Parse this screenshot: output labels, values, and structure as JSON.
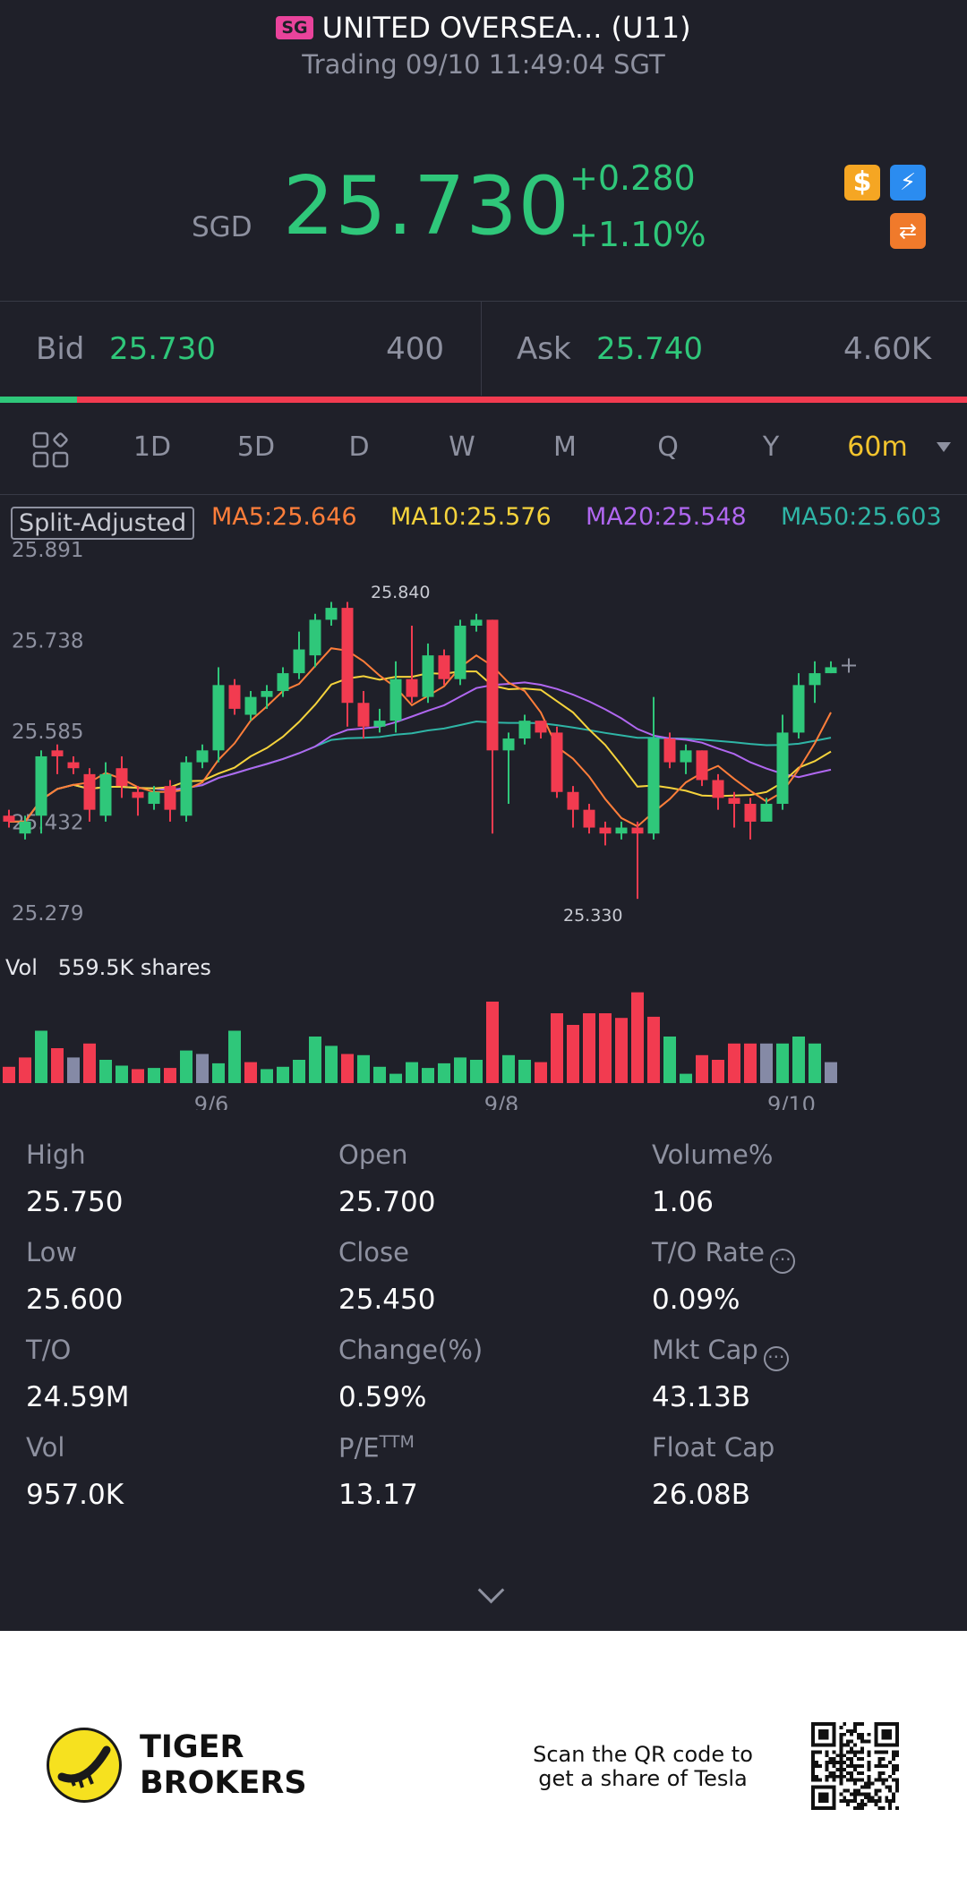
{
  "header": {
    "market_badge": "SG",
    "title": "UNITED OVERSEA... (U11)",
    "status": "Trading 09/10 11:49:04 SGT"
  },
  "quote": {
    "currency": "SGD",
    "price": "25.730",
    "change": "+0.280",
    "change_pct": "+1.10%",
    "color_up": "#2fc77a",
    "color_down": "#f23b50"
  },
  "badges": [
    "dollar-icon",
    "lightning-icon",
    "swap-icon"
  ],
  "orderbook": {
    "bid_label": "Bid",
    "bid_price": "25.730",
    "bid_qty": "400",
    "ask_label": "Ask",
    "ask_price": "25.740",
    "ask_qty": "4.60K",
    "bid_fraction": 0.08
  },
  "tabs": {
    "items": [
      "1D",
      "5D",
      "D",
      "W",
      "M",
      "Q",
      "Y",
      "60m"
    ],
    "selected": "60m"
  },
  "indicators": {
    "split_adjusted": "Split-Adjusted",
    "ma5": "MA5:25.646",
    "ma10": "MA10:25.576",
    "ma20": "MA20:25.548",
    "ma50": "MA50:25.603",
    "colors": {
      "ma5": "#ff7e3a",
      "ma10": "#f5d33c",
      "ma20": "#b067f0",
      "ma50": "#2fb5a6"
    }
  },
  "chart_data": {
    "type": "candlestick",
    "y_ticks": [
      "25.891",
      "25.738",
      "25.585",
      "25.432",
      "25.279"
    ],
    "ylim": [
      25.279,
      25.891
    ],
    "x_ticks": [
      {
        "label": "9/6",
        "index": 13
      },
      {
        "label": "9/8",
        "index": 31
      },
      {
        "label": "9/10",
        "index": 49
      }
    ],
    "high_marker": {
      "label": "25.840",
      "index": 22
    },
    "low_marker": {
      "label": "25.330",
      "index": 40
    },
    "volume_label": "Vol",
    "volume_value": "559.5K shares",
    "candles": [
      [
        25.47,
        25.46,
        25.48,
        25.45
      ],
      [
        25.44,
        25.46,
        25.47,
        25.43
      ],
      [
        25.47,
        25.57,
        25.58,
        25.44
      ],
      [
        25.58,
        25.57,
        25.59,
        25.54
      ],
      [
        25.56,
        25.55,
        25.57,
        25.54
      ],
      [
        25.54,
        25.48,
        25.55,
        25.46
      ],
      [
        25.47,
        25.54,
        25.56,
        25.46
      ],
      [
        25.55,
        25.52,
        25.57,
        25.5
      ],
      [
        25.51,
        25.5,
        25.52,
        25.47
      ],
      [
        25.49,
        25.51,
        25.52,
        25.48
      ],
      [
        25.52,
        25.48,
        25.53,
        25.46
      ],
      [
        25.47,
        25.56,
        25.57,
        25.46
      ],
      [
        25.56,
        25.58,
        25.59,
        25.55
      ],
      [
        25.58,
        25.69,
        25.72,
        25.56
      ],
      [
        25.69,
        25.65,
        25.7,
        25.64
      ],
      [
        25.64,
        25.67,
        25.68,
        25.63
      ],
      [
        25.67,
        25.68,
        25.69,
        25.65
      ],
      [
        25.68,
        25.71,
        25.72,
        25.67
      ],
      [
        25.71,
        25.75,
        25.78,
        25.7
      ],
      [
        25.74,
        25.8,
        25.81,
        25.72
      ],
      [
        25.8,
        25.82,
        25.83,
        25.79
      ],
      [
        25.82,
        25.66,
        25.83,
        25.62
      ],
      [
        25.66,
        25.62,
        25.68,
        25.6
      ],
      [
        25.62,
        25.63,
        25.65,
        25.61
      ],
      [
        25.63,
        25.7,
        25.73,
        25.61
      ],
      [
        25.7,
        25.67,
        25.79,
        25.66
      ],
      [
        25.67,
        25.74,
        25.76,
        25.66
      ],
      [
        25.74,
        25.7,
        25.75,
        25.69
      ],
      [
        25.7,
        25.79,
        25.8,
        25.69
      ],
      [
        25.79,
        25.8,
        25.81,
        25.78
      ],
      [
        25.8,
        25.58,
        25.8,
        25.44
      ],
      [
        25.58,
        25.6,
        25.61,
        25.49
      ],
      [
        25.6,
        25.63,
        25.64,
        25.59
      ],
      [
        25.63,
        25.61,
        25.62,
        25.6
      ],
      [
        25.61,
        25.51,
        25.62,
        25.5
      ],
      [
        25.51,
        25.48,
        25.52,
        25.45
      ],
      [
        25.48,
        25.45,
        25.49,
        25.44
      ],
      [
        25.45,
        25.44,
        25.46,
        25.42
      ],
      [
        25.44,
        25.45,
        25.46,
        25.43
      ],
      [
        25.45,
        25.44,
        25.46,
        25.33
      ],
      [
        25.44,
        25.6,
        25.67,
        25.43
      ],
      [
        25.6,
        25.56,
        25.61,
        25.55
      ],
      [
        25.56,
        25.58,
        25.59,
        25.54
      ],
      [
        25.58,
        25.53,
        25.58,
        25.52
      ],
      [
        25.53,
        25.5,
        25.54,
        25.48
      ],
      [
        25.5,
        25.49,
        25.51,
        25.45
      ],
      [
        25.49,
        25.46,
        25.5,
        25.43
      ],
      [
        25.46,
        25.49,
        25.5,
        25.46
      ],
      [
        25.49,
        25.61,
        25.64,
        25.48
      ],
      [
        25.61,
        25.69,
        25.71,
        25.6
      ],
      [
        25.69,
        25.71,
        25.73,
        25.66
      ],
      [
        25.71,
        25.72,
        25.73,
        25.71
      ]
    ],
    "volume": [
      [
        14,
        "d"
      ],
      [
        22,
        "d"
      ],
      [
        45,
        "u"
      ],
      [
        30,
        "d"
      ],
      [
        22,
        "n"
      ],
      [
        34,
        "d"
      ],
      [
        20,
        "u"
      ],
      [
        15,
        "u"
      ],
      [
        12,
        "d"
      ],
      [
        13,
        "u"
      ],
      [
        13,
        "d"
      ],
      [
        28,
        "u"
      ],
      [
        25,
        "n"
      ],
      [
        17,
        "u"
      ],
      [
        45,
        "u"
      ],
      [
        18,
        "d"
      ],
      [
        12,
        "u"
      ],
      [
        14,
        "u"
      ],
      [
        20,
        "u"
      ],
      [
        40,
        "u"
      ],
      [
        32,
        "u"
      ],
      [
        25,
        "d"
      ],
      [
        24,
        "u"
      ],
      [
        14,
        "u"
      ],
      [
        8,
        "u"
      ],
      [
        18,
        "u"
      ],
      [
        13,
        "u"
      ],
      [
        17,
        "u"
      ],
      [
        22,
        "u"
      ],
      [
        20,
        "u"
      ],
      [
        70,
        "d"
      ],
      [
        24,
        "u"
      ],
      [
        20,
        "u"
      ],
      [
        18,
        "d"
      ],
      [
        60,
        "d"
      ],
      [
        50,
        "d"
      ],
      [
        60,
        "d"
      ],
      [
        60,
        "d"
      ],
      [
        56,
        "d"
      ],
      [
        78,
        "d"
      ],
      [
        57,
        "d"
      ],
      [
        40,
        "u"
      ],
      [
        8,
        "u"
      ],
      [
        24,
        "d"
      ],
      [
        20,
        "d"
      ],
      [
        34,
        "d"
      ],
      [
        34,
        "d"
      ],
      [
        34,
        "n"
      ],
      [
        34,
        "u"
      ],
      [
        40,
        "u"
      ],
      [
        34,
        "u"
      ],
      [
        18,
        "n"
      ]
    ]
  },
  "stats": [
    {
      "label": "High",
      "value": "25.750"
    },
    {
      "label": "Open",
      "value": "25.700"
    },
    {
      "label": "Volume%",
      "value": "1.06"
    },
    {
      "label": "Low",
      "value": "25.600"
    },
    {
      "label": "Close",
      "value": "25.450"
    },
    {
      "label": "T/O Rate",
      "value": "0.09%",
      "info": true
    },
    {
      "label": "T/O",
      "value": "24.59M"
    },
    {
      "label": "Change(%)",
      "value": "0.59%"
    },
    {
      "label": "Mkt Cap",
      "value": "43.13B",
      "info": true
    },
    {
      "label": "Vol",
      "value": "957.0K"
    },
    {
      "label": "P/E",
      "sup": "TTM",
      "value": "13.17"
    },
    {
      "label": "Float Cap",
      "value": "26.08B"
    }
  ],
  "footer": {
    "brand_line1": "TIGER",
    "brand_line2": "BROKERS",
    "qr_line1": "Scan the QR code to",
    "qr_line2": "get a share of Tesla"
  }
}
